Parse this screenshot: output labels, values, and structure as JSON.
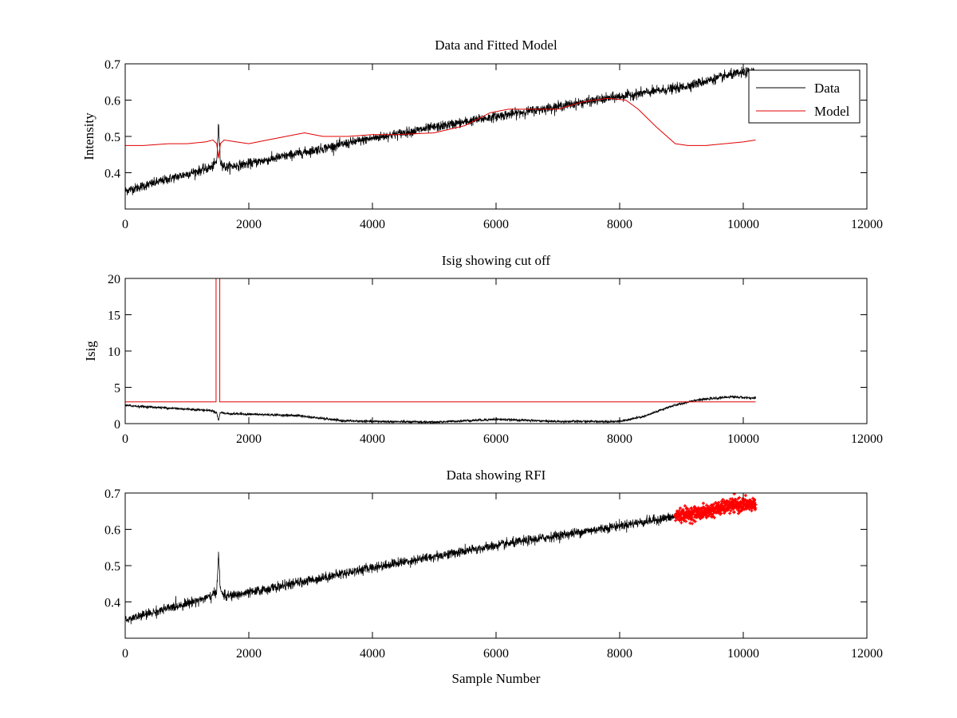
{
  "figure": {
    "background": "#ffffff"
  },
  "chart_data": [
    {
      "type": "line",
      "title": "Data and Fitted Model",
      "xlabel": "",
      "ylabel": "Intensity",
      "xlim": [
        0,
        12000
      ],
      "ylim": [
        0.3,
        0.7
      ],
      "xticks": [
        0,
        2000,
        4000,
        6000,
        8000,
        10000,
        12000
      ],
      "xtick_labels": [
        "0",
        "2000",
        "4000",
        "6000",
        "8000",
        "10000",
        "12000"
      ],
      "yticks": [
        0.4,
        0.5,
        0.6,
        0.7
      ],
      "ytick_labels": [
        "0.4",
        "0.5",
        "0.6",
        "0.7"
      ],
      "legend": {
        "position": "top-right",
        "entries": [
          "Data",
          "Model"
        ]
      },
      "series": [
        {
          "name": "Data",
          "color": "#000000",
          "style": "noisy",
          "noise": 0.012,
          "x": [
            0,
            1400,
            1480,
            1510,
            1540,
            1620,
            2000,
            4000,
            6000,
            8000,
            9000,
            9800,
            10200
          ],
          "y": [
            0.35,
            0.415,
            0.43,
            0.535,
            0.43,
            0.415,
            0.425,
            0.495,
            0.555,
            0.61,
            0.635,
            0.67,
            0.68
          ]
        },
        {
          "name": "Model",
          "color": "#e00000",
          "style": "line",
          "x": [
            0,
            300,
            700,
            1000,
            1300,
            1420,
            1480,
            1510,
            1540,
            1600,
            1800,
            2000,
            2300,
            2600,
            2900,
            3200,
            3600,
            4000,
            4400,
            5000,
            5500,
            5900,
            6200,
            6600,
            7000,
            7400,
            7800,
            8100,
            8300,
            8600,
            8900,
            9100,
            9400,
            9700,
            10000,
            10200
          ],
          "y": [
            0.475,
            0.475,
            0.48,
            0.48,
            0.485,
            0.49,
            0.48,
            0.44,
            0.48,
            0.49,
            0.485,
            0.48,
            0.49,
            0.5,
            0.51,
            0.5,
            0.5,
            0.505,
            0.505,
            0.51,
            0.53,
            0.565,
            0.575,
            0.575,
            0.575,
            0.595,
            0.605,
            0.6,
            0.575,
            0.525,
            0.48,
            0.475,
            0.475,
            0.48,
            0.485,
            0.49
          ]
        }
      ]
    },
    {
      "type": "line",
      "title": "Isig showing cut off",
      "xlabel": "",
      "ylabel": "Isig",
      "xlim": [
        0,
        12000
      ],
      "ylim": [
        0,
        20
      ],
      "xticks": [
        0,
        2000,
        4000,
        6000,
        8000,
        10000,
        12000
      ],
      "xtick_labels": [
        "0",
        "2000",
        "4000",
        "6000",
        "8000",
        "10000",
        "12000"
      ],
      "yticks": [
        0,
        5,
        10,
        15,
        20
      ],
      "ytick_labels": [
        "0",
        "5",
        "10",
        "15",
        "20"
      ],
      "series": [
        {
          "name": "Isig",
          "color": "#000000",
          "style": "noisy",
          "noise": 0.15,
          "x": [
            0,
            600,
            1400,
            1480,
            1510,
            1540,
            1620,
            2000,
            2800,
            3500,
            4000,
            5000,
            6000,
            7000,
            8000,
            8400,
            8800,
            9200,
            9800,
            10200
          ],
          "y": [
            2.5,
            2.2,
            1.8,
            1.5,
            0.4,
            1.6,
            1.4,
            1.3,
            1.1,
            0.4,
            0.3,
            0.2,
            0.6,
            0.3,
            0.3,
            1.0,
            2.3,
            3.2,
            3.7,
            3.5
          ]
        },
        {
          "name": "Cut off",
          "color": "#e00000",
          "style": "line",
          "x": [
            0,
            1470,
            1470,
            1530,
            1530,
            10200
          ],
          "y": [
            3.0,
            3.0,
            20,
            20,
            3.0,
            3.0
          ]
        }
      ]
    },
    {
      "type": "line",
      "title": "Data showing RFI",
      "xlabel": "Sample Number",
      "ylabel": "",
      "xlim": [
        0,
        12000
      ],
      "ylim": [
        0.3,
        0.7
      ],
      "xticks": [
        0,
        2000,
        4000,
        6000,
        8000,
        10000,
        12000
      ],
      "xtick_labels": [
        "0",
        "2000",
        "4000",
        "6000",
        "8000",
        "10000",
        "12000"
      ],
      "yticks": [
        0.4,
        0.5,
        0.6,
        0.7
      ],
      "ytick_labels": [
        "0.4",
        "0.5",
        "0.6",
        "0.7"
      ],
      "series": [
        {
          "name": "Data",
          "color": "#000000",
          "style": "noisy",
          "noise": 0.012,
          "x": [
            0,
            1400,
            1480,
            1510,
            1540,
            1620,
            2000,
            4000,
            6000,
            8000,
            8900
          ],
          "y": [
            0.35,
            0.415,
            0.43,
            0.535,
            0.43,
            0.415,
            0.425,
            0.495,
            0.555,
            0.61,
            0.635
          ]
        },
        {
          "name": "RFI",
          "color": "#ff0000",
          "style": "markers",
          "noise": 0.015,
          "x": [
            8900,
            9300,
            9800,
            10200
          ],
          "y": [
            0.638,
            0.645,
            0.665,
            0.67
          ]
        }
      ]
    }
  ]
}
